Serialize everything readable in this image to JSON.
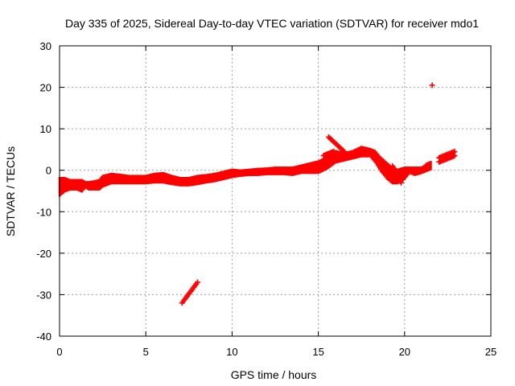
{
  "chart_data": {
    "type": "scatter",
    "title": "Day 335 of 2025, Sidereal Day-to-day VTEC variation (SDTVAR) for receiver mdo1",
    "xlabel": "GPS time / hours",
    "ylabel": "SDTVAR / TECUs",
    "xlim": [
      0,
      25
    ],
    "ylim": [
      -40,
      30
    ],
    "xticks": [
      0,
      5,
      10,
      15,
      20,
      25
    ],
    "yticks": [
      -40,
      -30,
      -20,
      -10,
      0,
      10,
      20,
      30
    ],
    "xtick_labels": [
      "0",
      "5",
      "10",
      "15",
      "20",
      "25"
    ],
    "ytick_labels": [
      "-40",
      "-30",
      "-20",
      "-10",
      "0",
      "10",
      "20",
      "30"
    ],
    "grid": true,
    "marker": "+",
    "series": [
      {
        "name": "mdo1",
        "color": "#ff0000",
        "band": [
          [
            0.0,
            -6.0,
            -2.0
          ],
          [
            0.3,
            -5.0,
            -2.0
          ],
          [
            0.6,
            -4.5,
            -2.5
          ],
          [
            1.0,
            -4.5,
            -2.5
          ],
          [
            1.3,
            -5.0,
            -2.5
          ],
          [
            1.5,
            -4.0,
            -3.0
          ],
          [
            1.7,
            -4.5,
            -3.0
          ],
          [
            2.0,
            -4.5,
            -2.8
          ],
          [
            2.3,
            -4.5,
            -2.5
          ],
          [
            2.5,
            -3.8,
            -1.5
          ],
          [
            3.0,
            -3.0,
            -1.0
          ],
          [
            3.5,
            -3.0,
            -1.2
          ],
          [
            4.0,
            -3.0,
            -1.5
          ],
          [
            4.5,
            -3.0,
            -1.5
          ],
          [
            5.0,
            -3.0,
            -1.5
          ],
          [
            5.5,
            -2.8,
            -1.0
          ],
          [
            6.0,
            -2.8,
            -0.8
          ],
          [
            6.5,
            -3.2,
            -1.5
          ],
          [
            7.0,
            -3.5,
            -2.0
          ],
          [
            7.5,
            -3.5,
            -2.0
          ],
          [
            8.0,
            -3.2,
            -1.5
          ],
          [
            8.5,
            -2.8,
            -1.3
          ],
          [
            9.0,
            -2.5,
            -1.0
          ],
          [
            9.5,
            -2.0,
            -0.5
          ],
          [
            10.0,
            -1.5,
            0.0
          ],
          [
            10.5,
            -1.2,
            -0.2
          ],
          [
            11.0,
            -1.0,
            0.0
          ],
          [
            11.5,
            -1.0,
            0.2
          ],
          [
            12.0,
            -0.8,
            0.3
          ],
          [
            12.5,
            -0.8,
            0.5
          ],
          [
            13.0,
            -0.8,
            0.5
          ],
          [
            13.5,
            -1.0,
            0.5
          ],
          [
            14.0,
            -0.5,
            1.0
          ],
          [
            14.5,
            -0.5,
            1.5
          ],
          [
            15.0,
            -0.5,
            2.0
          ],
          [
            15.5,
            0.5,
            3.0
          ],
          [
            16.0,
            2.0,
            4.5
          ],
          [
            16.5,
            2.5,
            4.0
          ],
          [
            17.0,
            3.0,
            4.5
          ],
          [
            17.5,
            3.5,
            5.5
          ],
          [
            18.0,
            3.5,
            5.0
          ],
          [
            18.3,
            2.0,
            4.5
          ],
          [
            18.6,
            0.0,
            3.0
          ],
          [
            19.0,
            -2.0,
            1.5
          ],
          [
            19.3,
            -3.0,
            0.5
          ],
          [
            19.6,
            -3.0,
            0.0
          ],
          [
            20.0,
            -2.0,
            0.5
          ],
          [
            20.3,
            -0.5,
            0.5
          ],
          [
            20.6,
            -1.0,
            0.5
          ],
          [
            21.0,
            -0.5,
            0.5
          ],
          [
            21.3,
            0.0,
            1.5
          ],
          [
            21.6,
            0.5,
            2.0
          ]
        ],
        "segments": [
          {
            "x": [
              15.3,
              15.9
            ],
            "y": [
              3.5,
              4.5
            ]
          },
          {
            "x": [
              15.6,
              16.5
            ],
            "y": [
              8.0,
              4.5
            ]
          },
          {
            "x": [
              19.3,
              19.8
            ],
            "y": [
              1.0,
              -3.0
            ]
          },
          {
            "x": [
              7.1,
              8.0
            ],
            "y": [
              -32.0,
              -27.0
            ]
          },
          {
            "x": [
              22.0,
              22.9
            ],
            "y": [
              2.0,
              3.5
            ]
          },
          {
            "x": [
              22.0,
              22.9
            ],
            "y": [
              3.0,
              4.5
            ]
          }
        ],
        "isolated": [
          {
            "x": 21.6,
            "y": 20.5
          },
          {
            "x": 22.8,
            "y": 3.8
          },
          {
            "x": 15.8,
            "y": 4.2
          }
        ]
      }
    ]
  }
}
